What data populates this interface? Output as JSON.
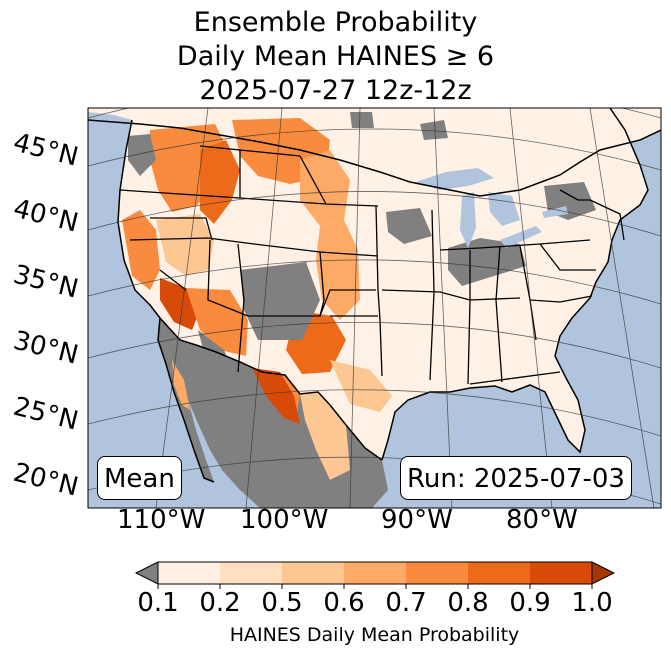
{
  "title": {
    "line1": "Ensemble Probability",
    "line2": "Daily Mean HAINES ≥ 6",
    "line3": "2025-07-27 12z-12z"
  },
  "map": {
    "lat_labels": [
      "45°N",
      "40°N",
      "35°N",
      "30°N",
      "25°N",
      "20°N"
    ],
    "lon_labels": [
      "110°W",
      "100°W",
      "90°W",
      "80°W"
    ],
    "stat_label": "Mean",
    "run_label": "Run: 2025-07-03",
    "colors": {
      "ocean": "#b0c4de",
      "missing": "#808080",
      "land_low": "#fff1e6"
    }
  },
  "colorbar": {
    "ticks": [
      "0.1",
      "0.2",
      "0.5",
      "0.6",
      "0.7",
      "0.8",
      "0.9",
      "1.0"
    ],
    "label": "HAINES Daily Mean Probability",
    "colors": [
      "#fff0e3",
      "#fee0c1",
      "#fdc793",
      "#fcaa66",
      "#f98b3e",
      "#ec6a1a",
      "#d84a07"
    ],
    "under_color": "#808080",
    "over_color": "#a63603"
  }
}
